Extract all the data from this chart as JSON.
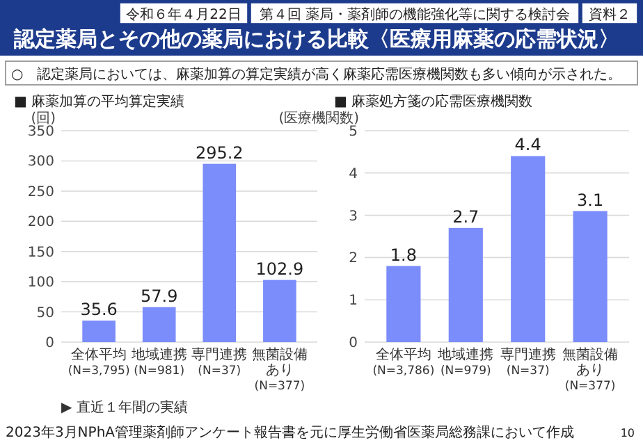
{
  "chart_data": [
    {
      "type": "other",
      "title": "認定薬局とその他の薬局における比較〈医療用麻薬の応需状況〉",
      "annotations": [
        "令和６年４月22日",
        "第４回 薬局・薬剤師の機能強化等に関する検討会",
        "資料２",
        "○　認定薬局においては、麻薬加算の算定実績が高く麻薬応需医療機関数も多い傾向が示された。",
        "2023年3月NPhA管理薬剤師アンケート報告書を元に厚生労働省医薬局総務課において作成",
        "10"
      ]
    },
    {
      "type": "bar",
      "title": "■ 麻薬加算の平均算定実績",
      "ylabel": "(回)",
      "categories": [
        "全体平均\n(N=3,795)",
        "地域連携\n(N=981)",
        "専門連携\n(N=37)",
        "無菌設備あり\n(N=377)"
      ],
      "values": [
        35.6,
        57.9,
        295.2,
        102.9
      ],
      "color": "#7b8cfb",
      "ylim": [
        0,
        350
      ],
      "yticks": [
        0,
        50,
        100,
        150,
        200,
        250,
        300,
        350
      ],
      "grid": "y",
      "data_labels": true,
      "annotations": [
        "▶ 直近１年間の実績"
      ]
    },
    {
      "type": "bar",
      "title": "■ 麻薬処方箋の応需医療機関数",
      "ylabel": "(医療機関数)",
      "categories": [
        "全体平均\n(N=3,786)",
        "地域連携\n(N=979)",
        "専門連携\n(N=37)",
        "無菌設備あり\n(N=377)"
      ],
      "values": [
        1.8,
        2.7,
        4.4,
        3.1
      ],
      "color": "#7b8cfb",
      "ylim": [
        0,
        5
      ],
      "yticks": [
        0,
        1,
        2,
        3,
        4,
        5
      ],
      "grid": "y",
      "data_labels": true
    }
  ]
}
